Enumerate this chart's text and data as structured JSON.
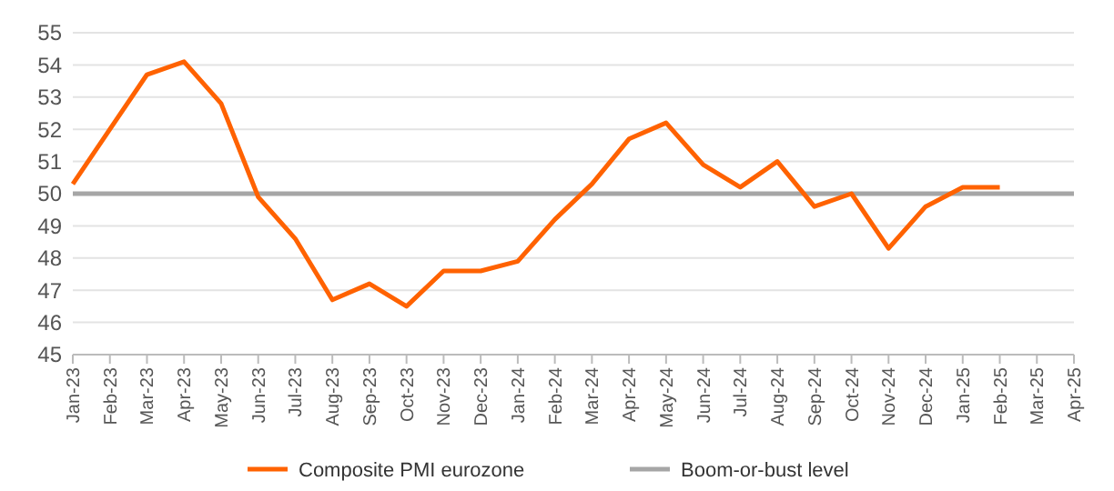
{
  "chart_data": {
    "type": "line",
    "categories": [
      "Jan-23",
      "Feb-23",
      "Mar-23",
      "Apr-23",
      "May-23",
      "Jun-23",
      "Jul-23",
      "Aug-23",
      "Sep-23",
      "Oct-23",
      "Nov-23",
      "Dec-23",
      "Jan-24",
      "Feb-24",
      "Mar-24",
      "Apr-24",
      "May-24",
      "Jun-24",
      "Jul-24",
      "Aug-24",
      "Sep-24",
      "Oct-24",
      "Nov-24",
      "Dec-24",
      "Jan-25",
      "Feb-25",
      "Mar-25",
      "Apr-25"
    ],
    "series": [
      {
        "name": "Composite PMI eurozone",
        "color": "#ff6200",
        "values": [
          50.3,
          52.0,
          53.7,
          54.1,
          52.8,
          49.9,
          48.6,
          46.7,
          47.2,
          46.5,
          47.6,
          47.6,
          47.9,
          49.2,
          50.3,
          51.7,
          52.2,
          50.9,
          50.2,
          51.0,
          49.6,
          50.0,
          48.3,
          49.6,
          50.2,
          50.2,
          null,
          null
        ]
      },
      {
        "name": "Boom-or-bust level",
        "color": "#a6a6a6",
        "values": [
          50,
          50,
          50,
          50,
          50,
          50,
          50,
          50,
          50,
          50,
          50,
          50,
          50,
          50,
          50,
          50,
          50,
          50,
          50,
          50,
          50,
          50,
          50,
          50,
          50,
          50,
          50,
          50
        ]
      }
    ],
    "ylim": [
      45,
      55
    ],
    "yticks": [
      45,
      46,
      47,
      48,
      49,
      50,
      51,
      52,
      53,
      54,
      55
    ],
    "grid": "y",
    "legend": "bottom",
    "marker": "none",
    "line_style": "solid"
  }
}
